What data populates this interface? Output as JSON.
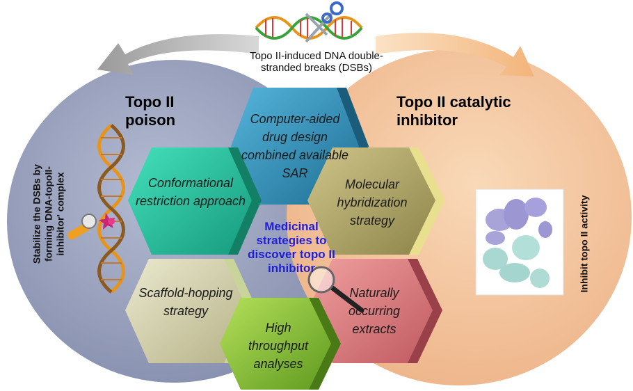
{
  "dna_caption": "Topo II-induced DNA double-stranded breaks (DSBs)",
  "poison": {
    "title_line1": "Topo II",
    "title_line2": "poison",
    "side_line1": "Stabilize the DSBs by",
    "side_line2": "forming 'DNA-topoII-",
    "side_line3": "inhibitor' complex"
  },
  "catalytic": {
    "title_line1": "Topo II catalytic",
    "title_line2": "inhibitor",
    "side_text": "Inhibit topo II activity"
  },
  "center_text": "Medicinal strategies to discover topo II inhibitor",
  "hexagons": {
    "cadd": "Computer-aided drug design combined available SAR",
    "conformational": "Conformational restriction approach",
    "molecular": "Molecular hybridization strategy",
    "scaffold": "Scaffold-hopping strategy",
    "natural": "Naturally occurring extracts",
    "hts": "High throughput analyses"
  },
  "colors": {
    "poison_circle": "#9aa3bf",
    "catalytic_circle": "#f4c7a0",
    "cadd_hex": "#3a98c0",
    "conformational_hex": "#2cc7a3",
    "molecular_hex": "#b8ad6e",
    "scaffold_hex": "#d6d3ae",
    "natural_hex": "#e07e82",
    "hts_hex": "#8cc43a",
    "center_text": "#1f1fd9"
  },
  "icons": [
    "dna-helix-icon",
    "scissors-icon",
    "curved-arrow-icon",
    "magnifier-icon",
    "protein-structure-icon",
    "ligand-icon"
  ]
}
